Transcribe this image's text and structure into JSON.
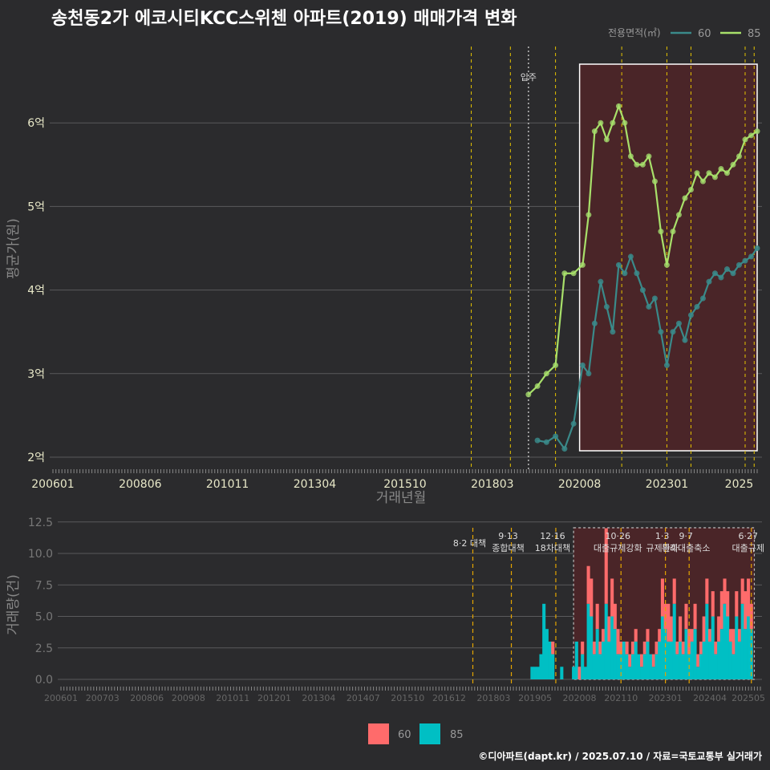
{
  "title": "송천동2가 에코시티KCC스위첸 아파트(2019) 매매가격 변화",
  "footer": "©디아파트(dapt.kr) / 2025.07.10 / 자료=국토교통부 실거래가",
  "colors": {
    "background": "#2b2b2d",
    "series_60": "#3a8a8a",
    "series_85": "#a8e06a",
    "point_85": "#9dd06a",
    "bar_60": "#ff6b6b",
    "bar_85": "#00bfc4",
    "policy_line": "#e5c300",
    "highlight_fill": "#4a2528"
  },
  "chart_data": [
    {
      "type": "line",
      "name": "price",
      "xlabel": "거래년월",
      "ylabel": "평균가(원)",
      "x_ticks": [
        "200601",
        "200806",
        "201011",
        "201304",
        "201510",
        "201803",
        "202008",
        "202301",
        "2025"
      ],
      "y_ticks": [
        "2억",
        "3억",
        "4억",
        "5억",
        "6억"
      ],
      "y_range_eok": [
        1.85,
        6.85
      ],
      "x_range": [
        "2006-01",
        "2025-07"
      ],
      "legend": {
        "title": "전용면적(㎡)",
        "labels": [
          "60",
          "85"
        ],
        "position": "top-right"
      },
      "annotation_move_in": {
        "label": "입주",
        "date": "2019-03"
      },
      "policy_dates": [
        "2017-08",
        "2018-09",
        "2019-12",
        "2021-10",
        "2023-01",
        "2023-09",
        "2025-03",
        "2025-06"
      ],
      "highlight_range": [
        "2020-08",
        "2025-07"
      ],
      "series": [
        {
          "name": "60",
          "points": [
            [
              "2019-06",
              2.2
            ],
            [
              "2019-09",
              2.18
            ],
            [
              "2019-12",
              2.25
            ],
            [
              "2020-03",
              2.1
            ],
            [
              "2020-06",
              2.4
            ],
            [
              "2020-09",
              3.1
            ],
            [
              "2020-11",
              3.0
            ],
            [
              "2021-01",
              3.6
            ],
            [
              "2021-03",
              4.1
            ],
            [
              "2021-05",
              3.8
            ],
            [
              "2021-07",
              3.5
            ],
            [
              "2021-09",
              4.3
            ],
            [
              "2021-11",
              4.2
            ],
            [
              "2022-01",
              4.4
            ],
            [
              "2022-03",
              4.2
            ],
            [
              "2022-05",
              4.0
            ],
            [
              "2022-07",
              3.8
            ],
            [
              "2022-09",
              3.9
            ],
            [
              "2022-11",
              3.5
            ],
            [
              "2023-01",
              3.1
            ],
            [
              "2023-03",
              3.5
            ],
            [
              "2023-05",
              3.6
            ],
            [
              "2023-07",
              3.4
            ],
            [
              "2023-09",
              3.7
            ],
            [
              "2023-11",
              3.8
            ],
            [
              "2024-01",
              3.9
            ],
            [
              "2024-03",
              4.1
            ],
            [
              "2024-05",
              4.2
            ],
            [
              "2024-07",
              4.15
            ],
            [
              "2024-09",
              4.25
            ],
            [
              "2024-11",
              4.2
            ],
            [
              "2025-01",
              4.3
            ],
            [
              "2025-03",
              4.35
            ],
            [
              "2025-05",
              4.4
            ],
            [
              "2025-07",
              4.5
            ]
          ]
        },
        {
          "name": "85",
          "points": [
            [
              "2019-03",
              2.75
            ],
            [
              "2019-06",
              2.85
            ],
            [
              "2019-09",
              3.0
            ],
            [
              "2019-12",
              3.1
            ],
            [
              "2020-03",
              4.2
            ],
            [
              "2020-06",
              4.2
            ],
            [
              "2020-09",
              4.3
            ],
            [
              "2020-11",
              4.9
            ],
            [
              "2021-01",
              5.9
            ],
            [
              "2021-03",
              6.0
            ],
            [
              "2021-05",
              5.8
            ],
            [
              "2021-07",
              6.0
            ],
            [
              "2021-09",
              6.2
            ],
            [
              "2021-11",
              6.0
            ],
            [
              "2022-01",
              5.6
            ],
            [
              "2022-03",
              5.5
            ],
            [
              "2022-05",
              5.5
            ],
            [
              "2022-07",
              5.6
            ],
            [
              "2022-09",
              5.3
            ],
            [
              "2022-11",
              4.7
            ],
            [
              "2023-01",
              4.3
            ],
            [
              "2023-03",
              4.7
            ],
            [
              "2023-05",
              4.9
            ],
            [
              "2023-07",
              5.1
            ],
            [
              "2023-09",
              5.2
            ],
            [
              "2023-11",
              5.4
            ],
            [
              "2024-01",
              5.3
            ],
            [
              "2024-03",
              5.4
            ],
            [
              "2024-05",
              5.35
            ],
            [
              "2024-07",
              5.45
            ],
            [
              "2024-09",
              5.4
            ],
            [
              "2024-11",
              5.5
            ],
            [
              "2025-01",
              5.6
            ],
            [
              "2025-03",
              5.8
            ],
            [
              "2025-05",
              5.85
            ],
            [
              "2025-07",
              5.9
            ]
          ]
        }
      ]
    },
    {
      "type": "bar",
      "name": "volume",
      "xlabel": "",
      "ylabel": "거래량(건)",
      "y_ticks": [
        "0.0",
        "2.5",
        "5.0",
        "7.5",
        "10.0",
        "12.5"
      ],
      "y_range": [
        -0.5,
        12.5
      ],
      "x_ticks": [
        "200601",
        "200703",
        "200806",
        "200908",
        "201011",
        "201201",
        "201304",
        "201407",
        "201510",
        "201612",
        "201803",
        "201905",
        "202008",
        "202110",
        "202301",
        "202404",
        "202505"
      ],
      "legend": {
        "labels": [
          "60",
          "85"
        ],
        "position": "bottom"
      },
      "annotations": [
        {
          "date": "2017-08",
          "lines": [
            "8·2 대책"
          ]
        },
        {
          "date": "2018-09",
          "lines": [
            "9·13",
            "종합대책"
          ]
        },
        {
          "date": "2019-12",
          "lines": [
            "12·16",
            "18차대책"
          ]
        },
        {
          "date": "2021-10",
          "lines": [
            "10·26",
            "대출규제강화"
          ]
        },
        {
          "date": "2023-01",
          "lines": [
            "1·3",
            "규제완화"
          ]
        },
        {
          "date": "2023-09",
          "lines": [
            "9·7",
            "특례대출축소"
          ]
        },
        {
          "date": "2025-06",
          "lines": [
            "6·27",
            "대출규제"
          ]
        }
      ],
      "bars": [
        [
          "2019-04",
          1,
          0
        ],
        [
          "2019-05",
          1,
          0
        ],
        [
          "2019-06",
          1,
          0
        ],
        [
          "2019-07",
          2,
          0
        ],
        [
          "2019-08",
          6,
          0
        ],
        [
          "2019-09",
          4,
          0
        ],
        [
          "2019-10",
          3,
          0
        ],
        [
          "2019-11",
          2,
          1
        ],
        [
          "2020-02",
          1,
          0
        ],
        [
          "2020-06",
          1,
          0
        ],
        [
          "2020-07",
          3,
          0
        ],
        [
          "2020-08",
          0,
          1
        ],
        [
          "2020-09",
          2,
          1
        ],
        [
          "2020-10",
          1,
          0
        ],
        [
          "2020-11",
          6,
          3
        ],
        [
          "2020-12",
          5,
          3
        ],
        [
          "2021-01",
          2,
          1
        ],
        [
          "2021-02",
          4,
          2
        ],
        [
          "2021-03",
          2,
          1
        ],
        [
          "2021-04",
          3,
          1
        ],
        [
          "2021-05",
          6,
          6
        ],
        [
          "2021-06",
          3,
          2
        ],
        [
          "2021-07",
          5,
          3
        ],
        [
          "2021-08",
          4,
          2
        ],
        [
          "2021-09",
          2,
          2
        ],
        [
          "2021-10",
          2,
          1
        ],
        [
          "2021-11",
          3,
          0
        ],
        [
          "2021-12",
          2,
          1
        ],
        [
          "2022-01",
          1,
          1
        ],
        [
          "2022-02",
          2,
          1
        ],
        [
          "2022-03",
          3,
          1
        ],
        [
          "2022-04",
          2,
          0
        ],
        [
          "2022-05",
          1,
          1
        ],
        [
          "2022-06",
          2,
          1
        ],
        [
          "2022-07",
          3,
          1
        ],
        [
          "2022-08",
          2,
          0
        ],
        [
          "2022-09",
          1,
          1
        ],
        [
          "2022-10",
          2,
          1
        ],
        [
          "2022-11",
          3,
          1
        ],
        [
          "2022-12",
          5,
          3
        ],
        [
          "2023-01",
          4,
          2
        ],
        [
          "2023-02",
          3,
          3
        ],
        [
          "2023-03",
          3,
          2
        ],
        [
          "2023-04",
          6,
          2
        ],
        [
          "2023-05",
          2,
          1
        ],
        [
          "2023-06",
          3,
          2
        ],
        [
          "2023-07",
          2,
          1
        ],
        [
          "2023-08",
          4,
          2
        ],
        [
          "2023-09",
          2,
          2
        ],
        [
          "2023-10",
          3,
          1
        ],
        [
          "2023-11",
          4,
          2
        ],
        [
          "2023-12",
          1,
          1
        ],
        [
          "2024-01",
          2,
          1
        ],
        [
          "2024-02",
          3,
          2
        ],
        [
          "2024-03",
          6,
          2
        ],
        [
          "2024-04",
          3,
          1
        ],
        [
          "2024-05",
          5,
          2
        ],
        [
          "2024-06",
          2,
          1
        ],
        [
          "2024-07",
          3,
          2
        ],
        [
          "2024-08",
          4,
          3
        ],
        [
          "2024-09",
          6,
          2
        ],
        [
          "2024-10",
          5,
          2
        ],
        [
          "2024-11",
          3,
          1
        ],
        [
          "2024-12",
          2,
          2
        ],
        [
          "2025-01",
          5,
          2
        ],
        [
          "2025-02",
          3,
          1
        ],
        [
          "2025-03",
          6,
          2
        ],
        [
          "2025-04",
          4,
          3
        ],
        [
          "2025-05",
          5,
          3
        ],
        [
          "2025-06",
          4,
          2
        ]
      ]
    }
  ]
}
